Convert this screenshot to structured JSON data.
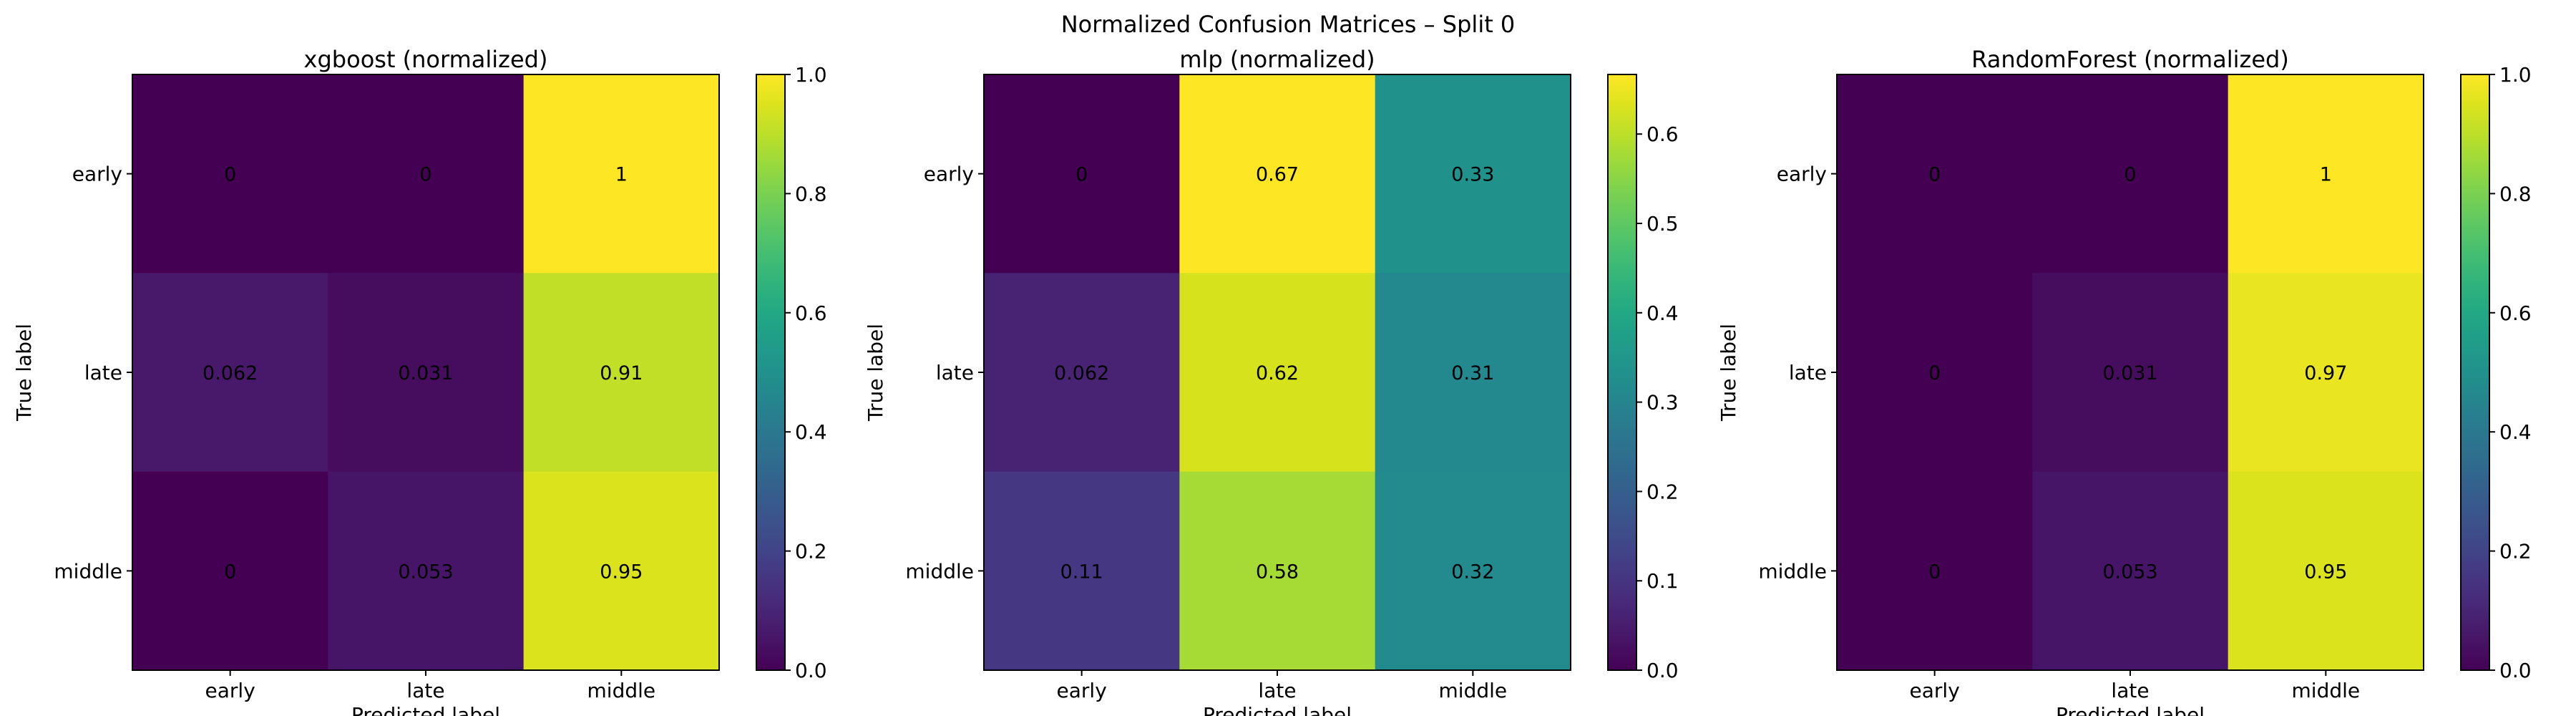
{
  "figure": {
    "suptitle": "Normalized Confusion Matrices – Split 0"
  },
  "colormap": "viridis",
  "chart_data": [
    {
      "type": "heatmap",
      "title": "xgboost (normalized)",
      "xlabel": "Predicted label",
      "ylabel": "True label",
      "row_labels": [
        "early",
        "late",
        "middle"
      ],
      "col_labels": [
        "early",
        "late",
        "middle"
      ],
      "cell_text": [
        [
          "0",
          "0",
          "1"
        ],
        [
          "0.062",
          "0.031",
          "0.91"
        ],
        [
          "0",
          "0.053",
          "0.95"
        ]
      ],
      "values": [
        [
          0,
          0,
          1
        ],
        [
          0.0625,
          0.03125,
          0.90625
        ],
        [
          0,
          0.0526,
          0.9474
        ]
      ],
      "vmin": 0,
      "vmax": 1,
      "colorbar_ticks": [
        0,
        0.2,
        0.4,
        0.6,
        0.8,
        1
      ],
      "colorbar_tick_labels": [
        "0.0",
        "0.2",
        "0.4",
        "0.6",
        "0.8",
        "1.0"
      ]
    },
    {
      "type": "heatmap",
      "title": "mlp (normalized)",
      "xlabel": "Predicted label",
      "ylabel": "True label",
      "row_labels": [
        "early",
        "late",
        "middle"
      ],
      "col_labels": [
        "early",
        "late",
        "middle"
      ],
      "cell_text": [
        [
          "0",
          "0.67",
          "0.33"
        ],
        [
          "0.062",
          "0.62",
          "0.31"
        ],
        [
          "0.11",
          "0.58",
          "0.32"
        ]
      ],
      "values": [
        [
          0,
          0.6667,
          0.3333
        ],
        [
          0.0625,
          0.625,
          0.3125
        ],
        [
          0.1053,
          0.5789,
          0.3158
        ]
      ],
      "vmin": 0,
      "vmax": 0.6667,
      "colorbar_ticks": [
        0,
        0.1,
        0.2,
        0.3,
        0.4,
        0.5,
        0.6
      ],
      "colorbar_tick_labels": [
        "0.0",
        "0.1",
        "0.2",
        "0.3",
        "0.4",
        "0.5",
        "0.6"
      ]
    },
    {
      "type": "heatmap",
      "title": "RandomForest (normalized)",
      "xlabel": "Predicted label",
      "ylabel": "True label",
      "row_labels": [
        "early",
        "late",
        "middle"
      ],
      "col_labels": [
        "early",
        "late",
        "middle"
      ],
      "cell_text": [
        [
          "0",
          "0",
          "1"
        ],
        [
          "0",
          "0.031",
          "0.97"
        ],
        [
          "0",
          "0.053",
          "0.95"
        ]
      ],
      "values": [
        [
          0,
          0,
          1
        ],
        [
          0,
          0.03125,
          0.96875
        ],
        [
          0,
          0.0526,
          0.9474
        ]
      ],
      "vmin": 0,
      "vmax": 1,
      "colorbar_ticks": [
        0,
        0.2,
        0.4,
        0.6,
        0.8,
        1
      ],
      "colorbar_tick_labels": [
        "0.0",
        "0.2",
        "0.4",
        "0.6",
        "0.8",
        "1.0"
      ]
    }
  ]
}
